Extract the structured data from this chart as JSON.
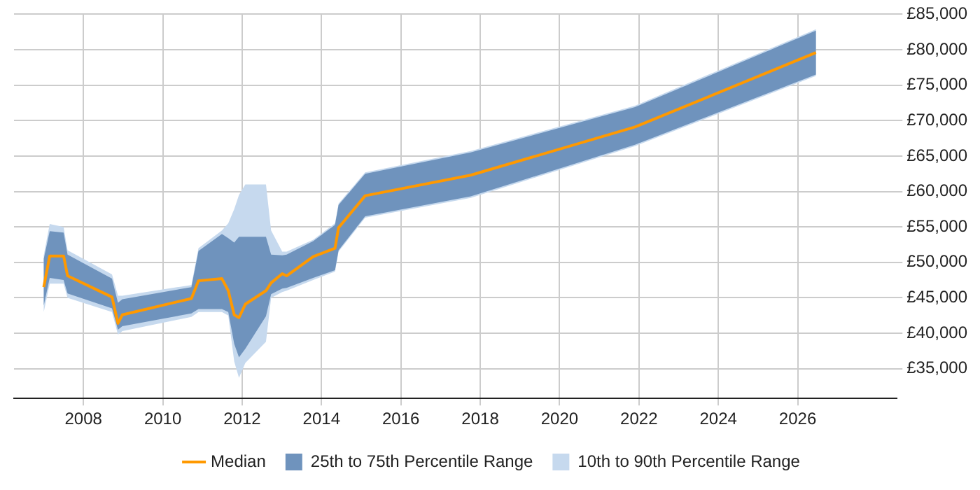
{
  "chart_data": {
    "type": "line",
    "x": [
      2007.0,
      2007.15,
      2007.5,
      2007.6,
      2008.72,
      2008.87,
      2008.98,
      2010.72,
      2010.9,
      2011.49,
      2011.65,
      2011.8,
      2011.92,
      2012.08,
      2012.6,
      2012.73,
      2013.01,
      2013.12,
      2013.79,
      2014.34,
      2014.43,
      2015.1,
      2017.76,
      2021.9,
      2026.46
    ],
    "series": [
      {
        "name": "Median",
        "type": "line",
        "color": "#ff9900",
        "values": [
          46500,
          50900,
          50900,
          48100,
          45100,
          41400,
          42600,
          44900,
          47400,
          47700,
          46000,
          42600,
          42200,
          44100,
          46000,
          47100,
          48400,
          48100,
          50800,
          52000,
          54900,
          59400,
          62300,
          69100,
          79600
        ]
      },
      {
        "name": "25th to 75th Percentile Range",
        "type": "area",
        "color": "#6f93bd",
        "values": [
          null,
          null,
          null,
          null,
          null,
          null,
          null,
          null,
          null,
          null,
          null,
          null,
          null,
          null,
          null,
          null,
          null,
          null,
          null,
          null,
          null,
          null,
          null,
          null,
          null
        ],
        "lower": [
          43900,
          47800,
          47500,
          45600,
          43500,
          40500,
          41000,
          42800,
          43400,
          43400,
          43000,
          38500,
          36600,
          37800,
          42400,
          45500,
          46300,
          46400,
          47800,
          48900,
          51700,
          56500,
          59300,
          66600,
          76500
        ],
        "upper": [
          50500,
          54400,
          54200,
          51100,
          47700,
          44300,
          44800,
          46500,
          51600,
          54000,
          53400,
          52800,
          53600,
          53600,
          53600,
          51100,
          51000,
          51100,
          53000,
          55300,
          58100,
          62500,
          65500,
          71900,
          82700
        ]
      },
      {
        "name": "10th to 90th Percentile Range",
        "type": "area",
        "color": "#c6d9ee",
        "values": [
          null,
          null,
          null,
          null,
          null,
          null,
          null,
          null,
          null,
          null,
          null,
          null,
          null,
          null,
          null,
          null,
          null,
          null,
          null,
          null,
          null,
          null,
          null,
          null,
          null
        ],
        "lower": [
          43000,
          47000,
          47000,
          45000,
          43000,
          39800,
          40300,
          42300,
          43000,
          43000,
          42500,
          36000,
          33700,
          35800,
          38800,
          45000,
          45800,
          46000,
          47500,
          48700,
          51500,
          56300,
          59100,
          66400,
          76300
        ],
        "upper": [
          51000,
          55400,
          55000,
          51700,
          48300,
          45300,
          45300,
          46800,
          52000,
          54500,
          55500,
          57500,
          59500,
          61000,
          61000,
          54500,
          51500,
          51500,
          53200,
          55500,
          58300,
          62700,
          65700,
          72100,
          82900
        ]
      }
    ],
    "xlim": [
      2006.25,
      2028.5
    ],
    "xticks": [
      2008,
      2010,
      2012,
      2014,
      2016,
      2018,
      2020,
      2022,
      2024,
      2026
    ],
    "ylim": [
      30800,
      85000
    ],
    "yticks": [
      {
        "value": 35000,
        "label": "£35,000"
      },
      {
        "value": 40000,
        "label": "£40,000"
      },
      {
        "value": 45000,
        "label": "£45,000"
      },
      {
        "value": 50000,
        "label": "£50,000"
      },
      {
        "value": 55000,
        "label": "£55,000"
      },
      {
        "value": 60000,
        "label": "£60,000"
      },
      {
        "value": 65000,
        "label": "£65,000"
      },
      {
        "value": 70000,
        "label": "£70,000"
      },
      {
        "value": 75000,
        "label": "£75,000"
      },
      {
        "value": 80000,
        "label": "£80,000"
      },
      {
        "value": 85000,
        "label": "£85,000"
      }
    ],
    "grid": true,
    "legend": "bottom",
    "marker": "none",
    "line_style": "solid"
  }
}
